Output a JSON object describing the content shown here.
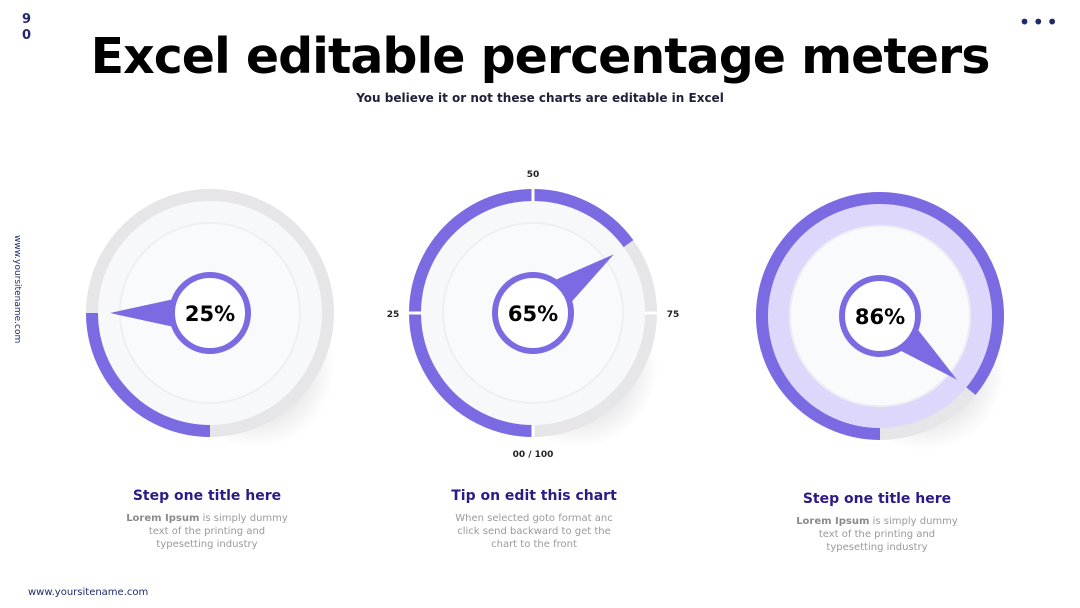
{
  "page_number": "90",
  "title": "Excel editable percentage meters",
  "subtitle": "You believe it or not these charts are editable in Excel",
  "side_url": "www.yoursitename.com",
  "footer_url": "www.yoursitename.com",
  "chart_data": [
    {
      "type": "gauge",
      "values": [
        25
      ],
      "value_labels": [
        "25%"
      ],
      "ylim": [
        0,
        100
      ],
      "color": "#7b6be3"
    },
    {
      "type": "gauge",
      "values": [
        65
      ],
      "value_labels": [
        "65%"
      ],
      "ylim": [
        0,
        100
      ],
      "color": "#7b6be3",
      "yticks": [
        {
          "value": 0,
          "label": "00 / 100"
        },
        25,
        50,
        75
      ]
    },
    {
      "type": "gauge",
      "values": [
        86
      ],
      "value_labels": [
        "86%"
      ],
      "ylim": [
        0,
        100
      ],
      "color": "#7b6be3"
    }
  ],
  "cards": [
    {
      "title": "Step one title here",
      "bold": "Lorem Ipsum",
      "text": " is simply dummy text of the printing and typesetting industry"
    },
    {
      "title": "Tip on edit this chart",
      "bold": "",
      "text": "When selected goto format anc click send backward to get the chart to the front"
    },
    {
      "title": "Step one title here",
      "bold": "Lorem Ipsum",
      "text": " is simply dummy text of the printing and typesetting industry"
    }
  ]
}
